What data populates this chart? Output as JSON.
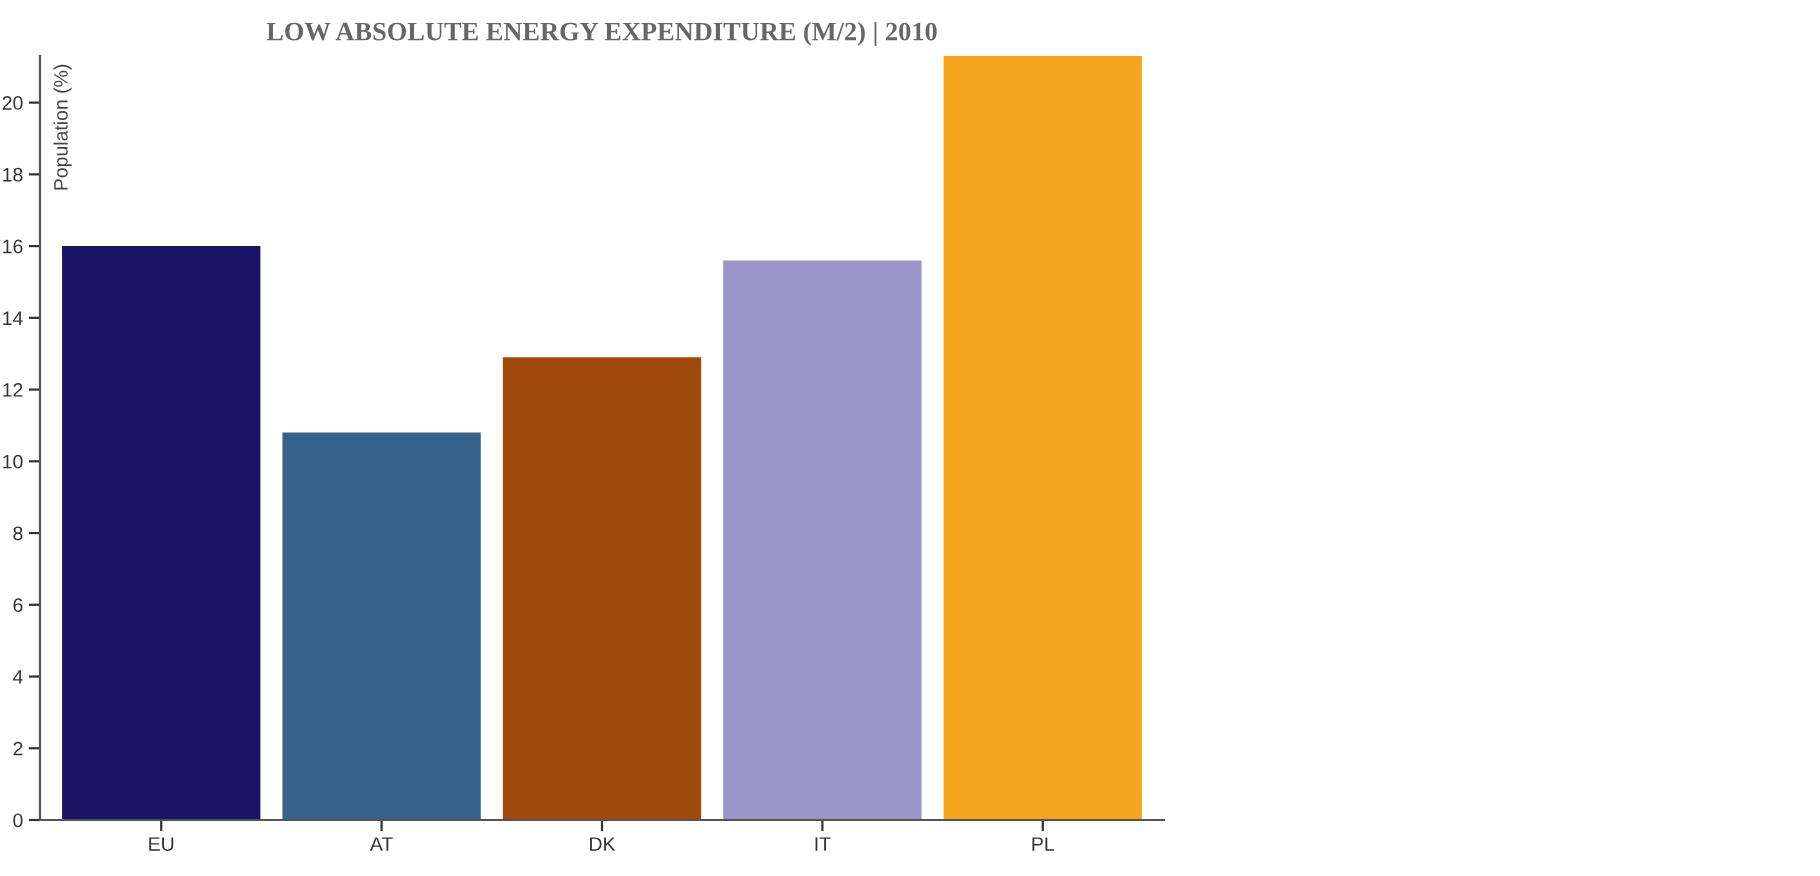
{
  "chart_data": {
    "type": "bar",
    "title": "LOW ABSOLUTE ENERGY EXPENDITURE (M/2) | 2010",
    "ylabel": "Population (%)",
    "categories": [
      "EU",
      "AT",
      "DK",
      "IT",
      "PL"
    ],
    "values": [
      16.0,
      10.8,
      12.9,
      15.6,
      21.3
    ],
    "colors": [
      "#1a1464",
      "#36628c",
      "#a04b0c",
      "#9b94c8",
      "#f6a51e"
    ],
    "ylim": [
      0,
      21.3
    ],
    "yticks": [
      0,
      2,
      4,
      6,
      8,
      10,
      12,
      14,
      16,
      18,
      20
    ],
    "grid": false,
    "legend": false
  }
}
